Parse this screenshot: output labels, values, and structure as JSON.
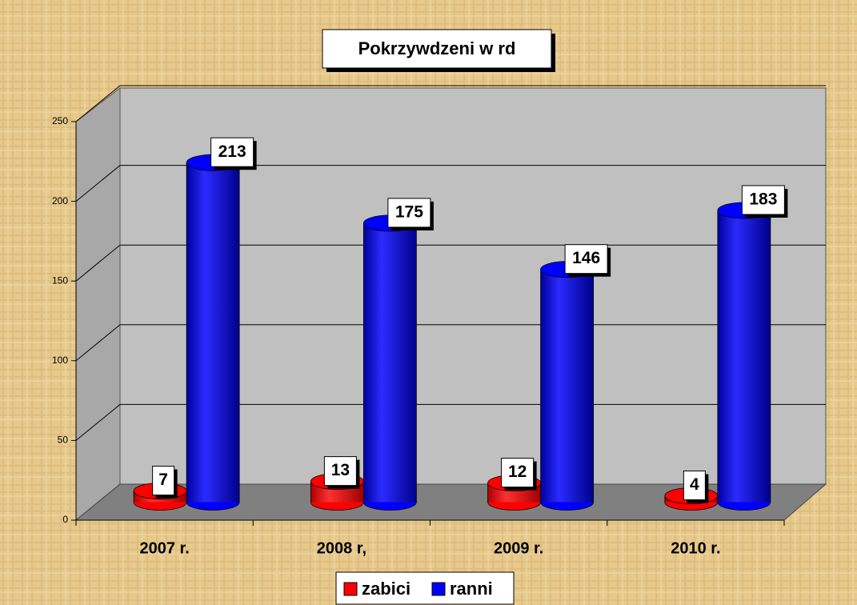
{
  "chart_data": {
    "type": "bar",
    "title": "Pokrzywdzeni w rd",
    "categories": [
      "2007 r.",
      "2008 r,",
      "2009 r.",
      "2010 r."
    ],
    "series": [
      {
        "name": "zabici",
        "color": "#ff0000",
        "values": [
          7,
          13,
          12,
          4
        ]
      },
      {
        "name": "ranni",
        "color": "#0000ff",
        "values": [
          213,
          175,
          146,
          183
        ]
      }
    ],
    "ylim": [
      0,
      250
    ],
    "yticks": [
      0,
      50,
      100,
      150,
      200,
      250
    ],
    "grid": true,
    "legend": "bottom"
  }
}
